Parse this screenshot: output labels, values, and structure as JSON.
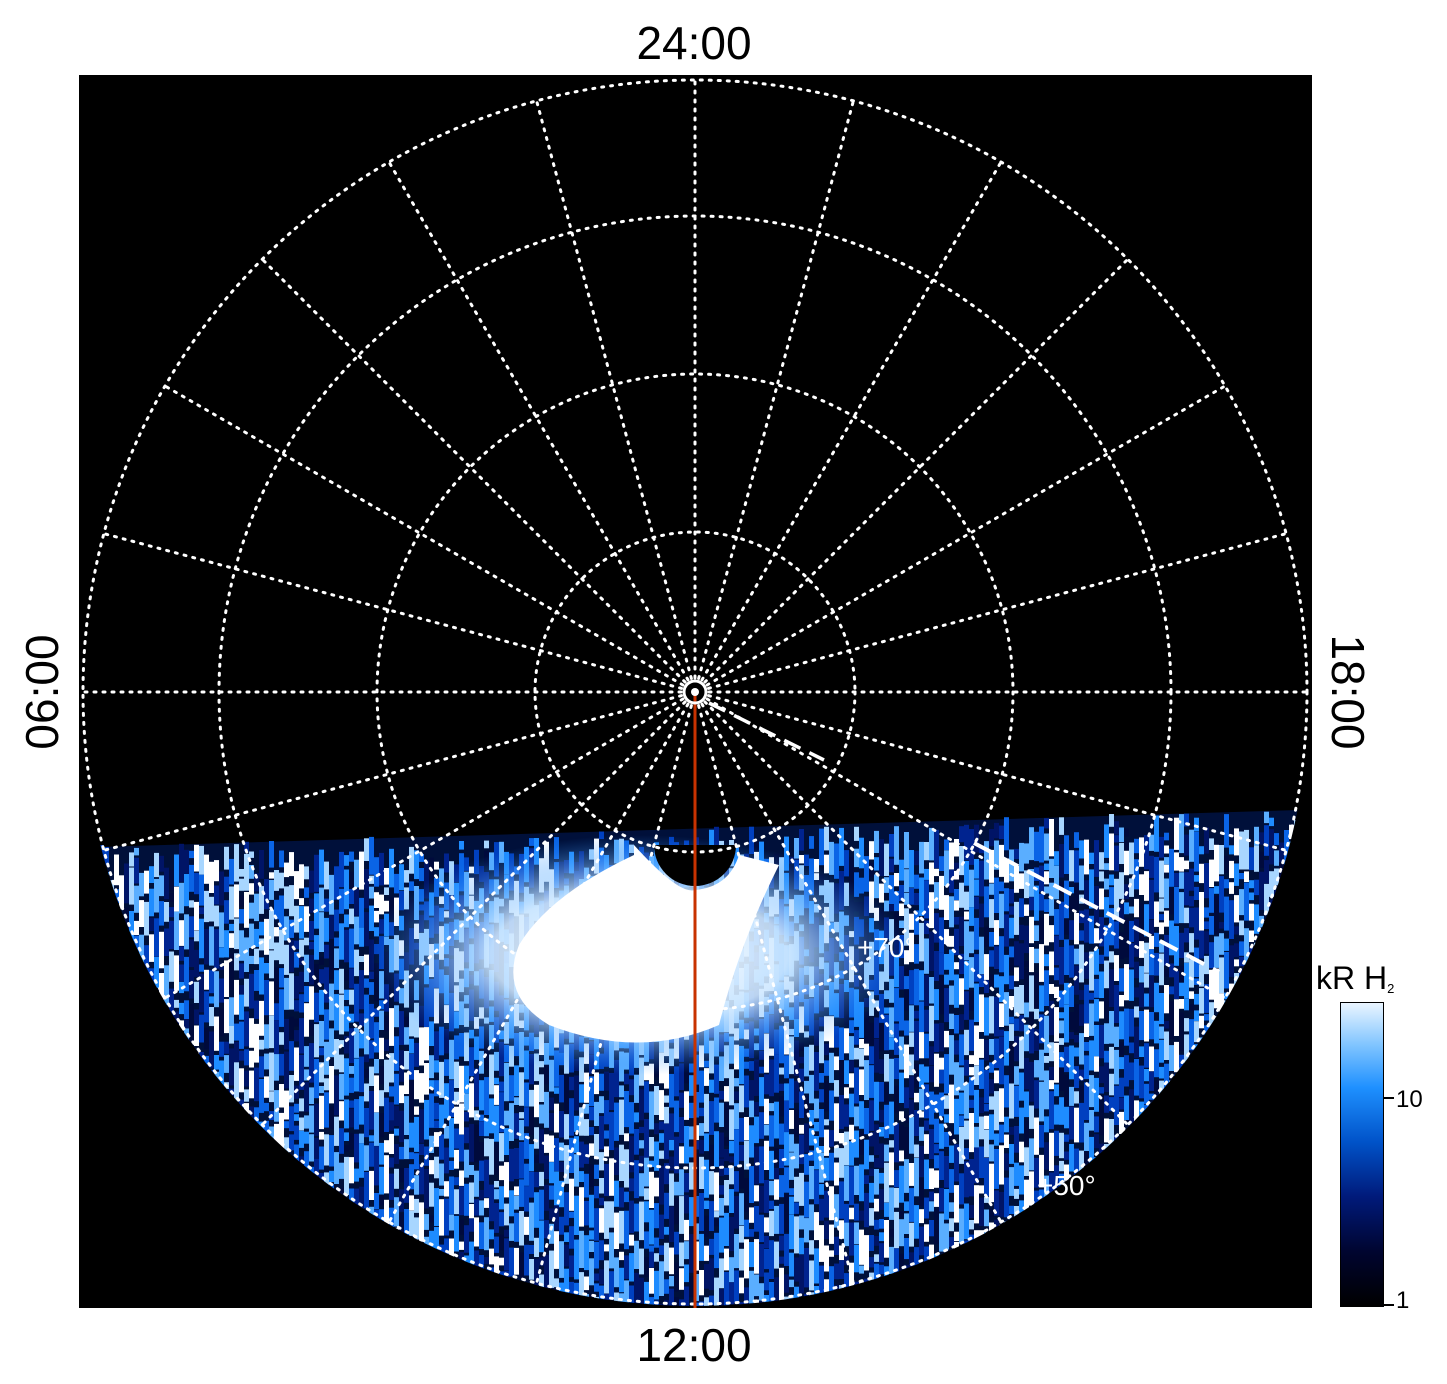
{
  "time_labels": {
    "top": "24:00",
    "bottom": "12:00",
    "left": "06:00",
    "right": "18:00"
  },
  "latitude_labels": {
    "inner": "+70°",
    "outer": "+50°"
  },
  "colorbar": {
    "unit": "kR H",
    "subscript": "2",
    "ticks": [
      "1",
      "10"
    ],
    "scale": "log"
  },
  "colors": {
    "grid": "#ffffff",
    "meridian_line": "#c83200",
    "background": "#000000",
    "emission_low": "#000a40",
    "emission_mid": "#1e8cff",
    "emission_high": "#ffffff"
  }
}
